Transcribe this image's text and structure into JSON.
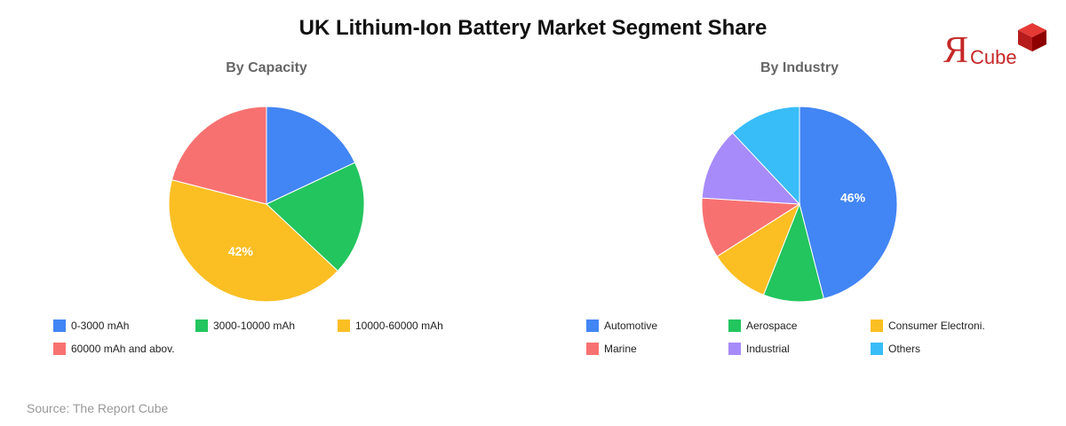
{
  "title": "UK Lithium-Ion Battery Market Segment Share",
  "logo": {
    "letter": "Я",
    "word": "Cube"
  },
  "source": "Source: The Report Cube",
  "chart_data": [
    {
      "type": "pie",
      "title": "By Capacity",
      "slices": [
        {
          "label": "0-3000 mAh",
          "value": 18,
          "color": "#4285f4"
        },
        {
          "label": "3000-10000 mAh",
          "value": 19,
          "color": "#22c55e"
        },
        {
          "label": "10000-60000 mAh",
          "value": 42,
          "color": "#fbbf24",
          "data_label": "42%"
        },
        {
          "label": "60000 mAh and abov.",
          "value": 21,
          "color": "#f87171"
        }
      ],
      "legend_placement": "bottom"
    },
    {
      "type": "pie",
      "title": "By Industry",
      "slices": [
        {
          "label": "Automotive",
          "value": 46,
          "color": "#4285f4",
          "data_label": "46%"
        },
        {
          "label": "Aerospace",
          "value": 10,
          "color": "#22c55e"
        },
        {
          "label": "Consumer Electroni.",
          "value": 10,
          "color": "#fbbf24"
        },
        {
          "label": "Marine",
          "value": 10,
          "color": "#f87171"
        },
        {
          "label": "Industrial",
          "value": 12,
          "color": "#a78bfa"
        },
        {
          "label": "Others",
          "value": 12,
          "color": "#38bdf8"
        }
      ],
      "legend_placement": "bottom"
    }
  ]
}
